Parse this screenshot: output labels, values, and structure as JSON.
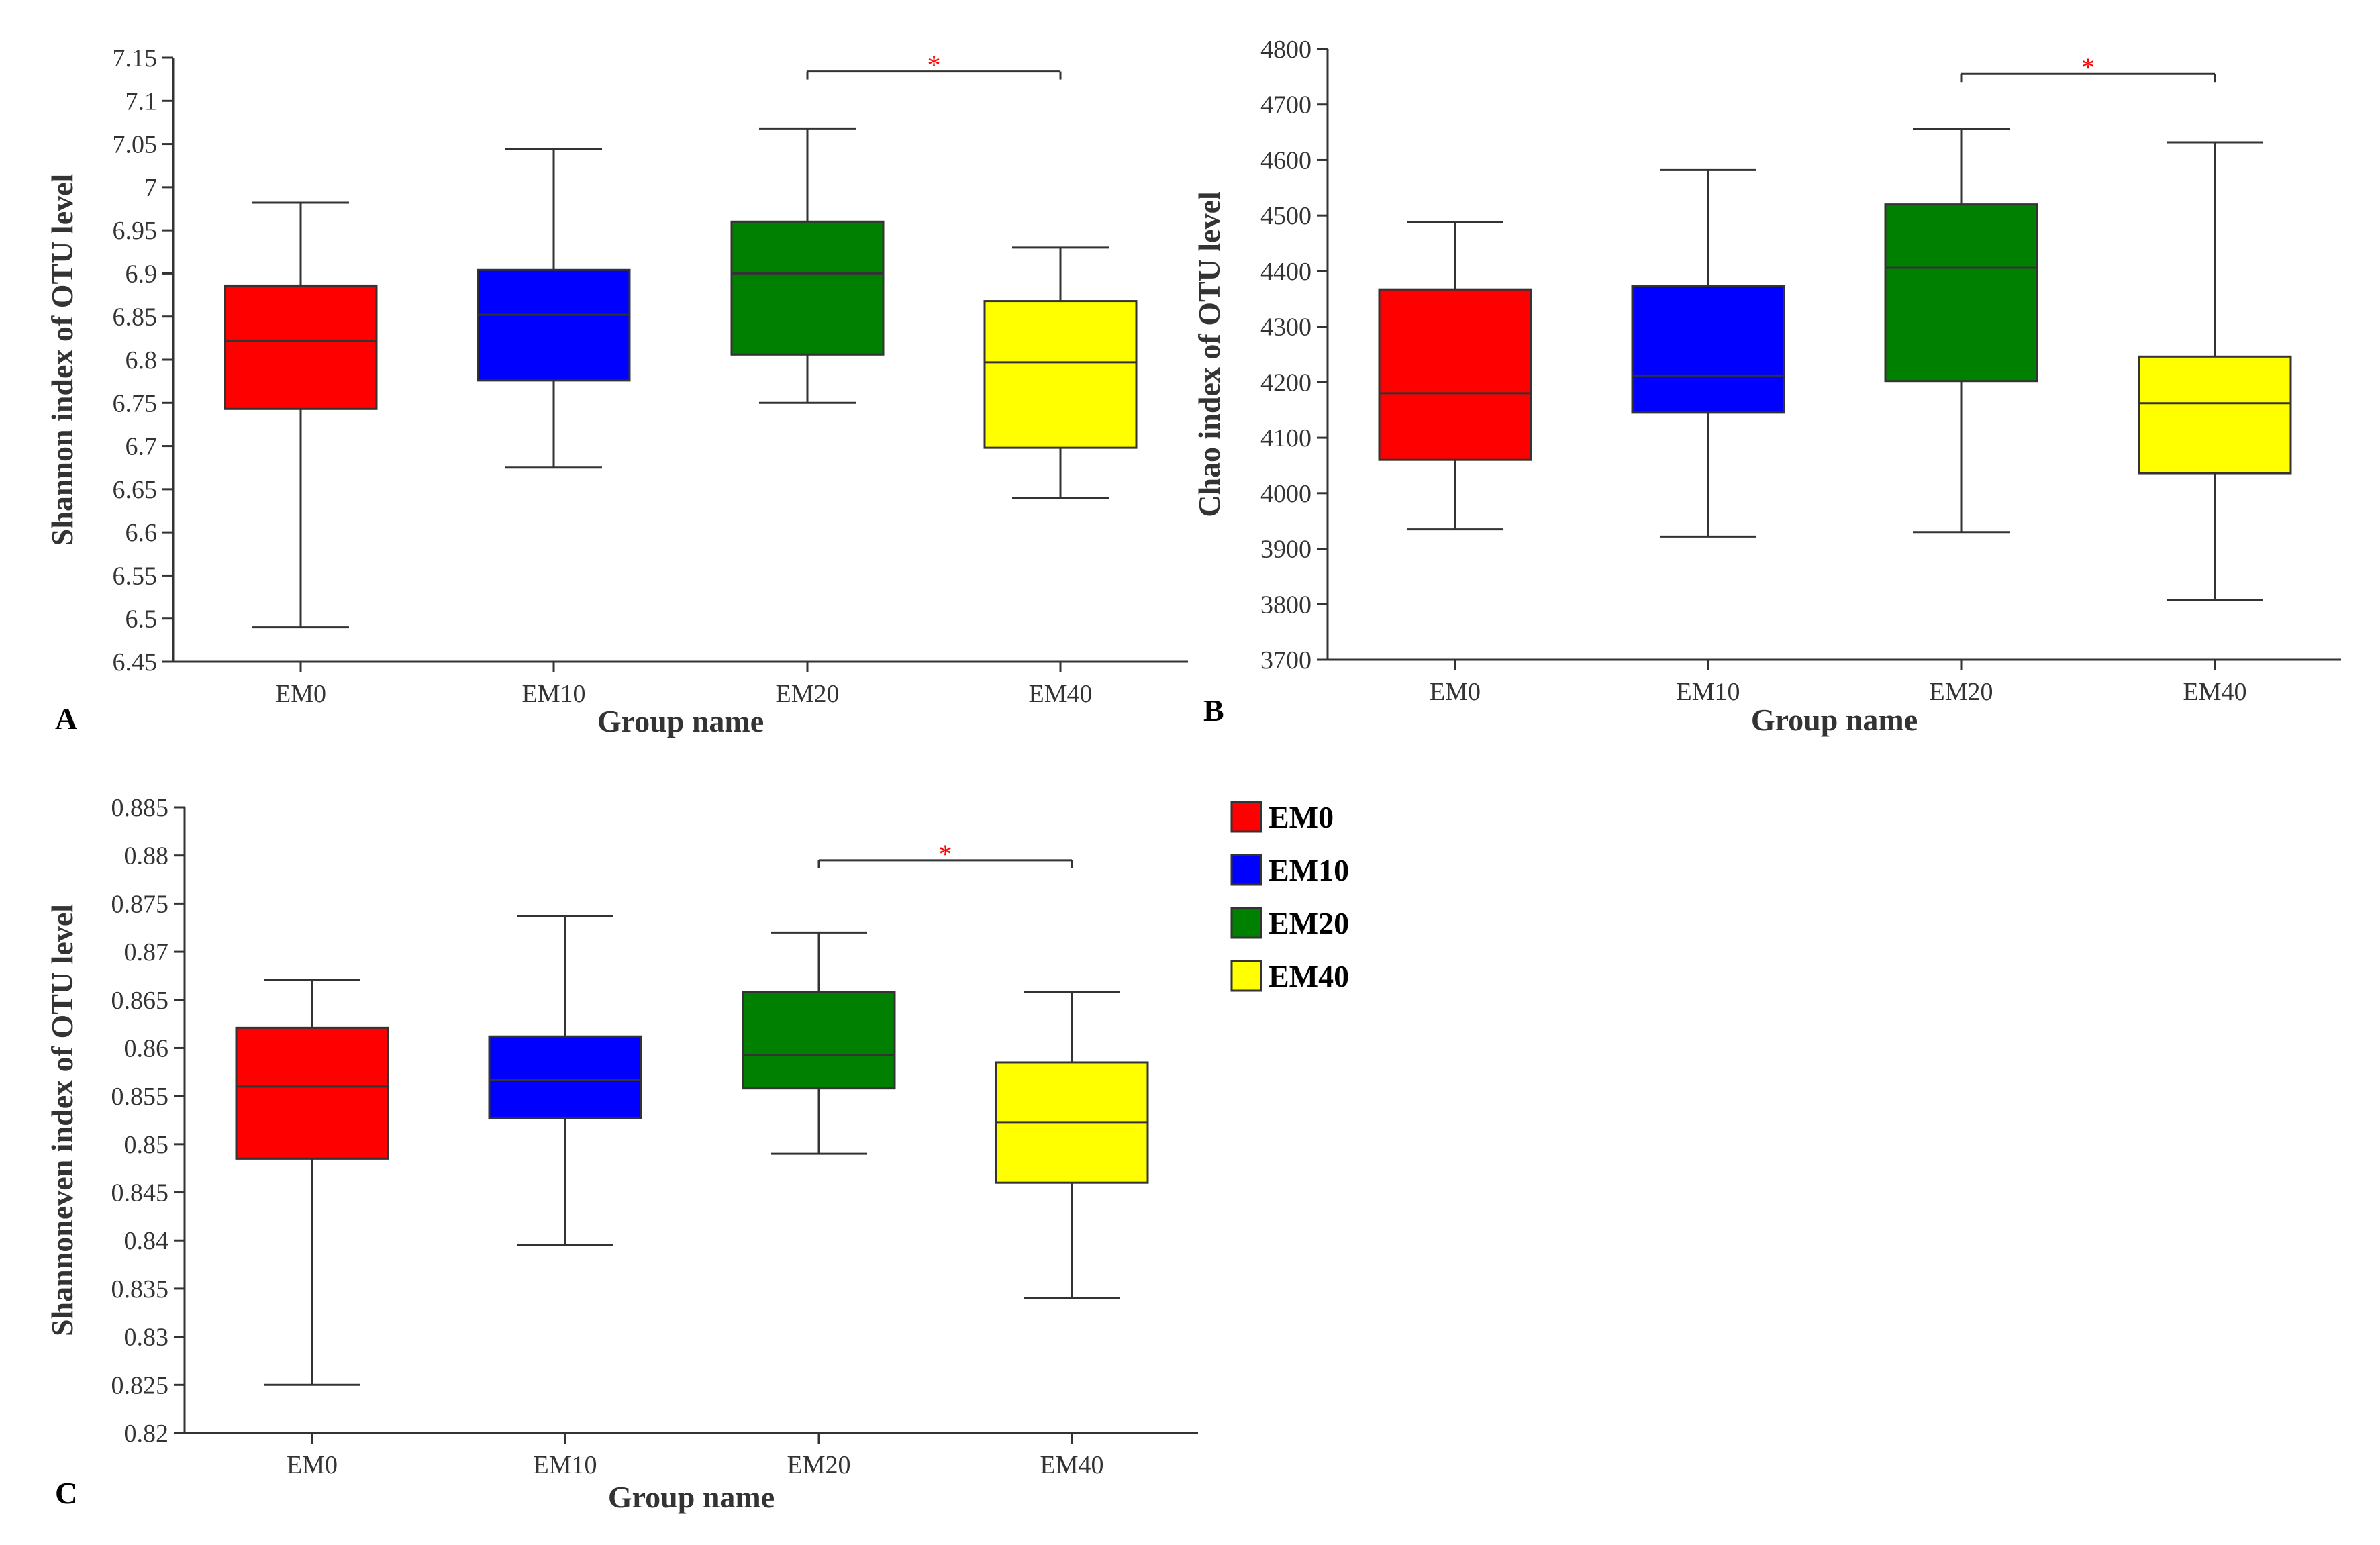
{
  "legend": {
    "items": [
      {
        "label": "EM0",
        "color": "#ff0000"
      },
      {
        "label": "EM10",
        "color": "#0000ff"
      },
      {
        "label": "EM20",
        "color": "#008000"
      },
      {
        "label": "EM40",
        "color": "#ffff00"
      }
    ]
  },
  "chart_data": [
    {
      "panel": "A",
      "type": "box",
      "xlabel": "Group name",
      "ylabel": "Shannon index of OTU level",
      "ylim": [
        6.45,
        7.15
      ],
      "yticks": [
        "6.45",
        "6.5",
        "6.55",
        "6.6",
        "6.65",
        "6.7",
        "6.75",
        "6.8",
        "6.85",
        "6.9",
        "6.95",
        "7",
        "7.05",
        "7.1",
        "7.15"
      ],
      "categories": [
        "EM0",
        "EM10",
        "EM20",
        "EM40"
      ],
      "boxes": [
        {
          "group": "EM0",
          "min": 6.49,
          "q1": 6.743,
          "median": 6.822,
          "q3": 6.886,
          "max": 6.982,
          "color": "#ff0000"
        },
        {
          "group": "EM10",
          "min": 6.675,
          "q1": 6.776,
          "median": 6.852,
          "q3": 6.904,
          "max": 7.044,
          "color": "#0000ff"
        },
        {
          "group": "EM20",
          "min": 6.75,
          "q1": 6.806,
          "median": 6.9,
          "q3": 6.96,
          "max": 7.068,
          "color": "#008000"
        },
        {
          "group": "EM40",
          "min": 6.64,
          "q1": 6.698,
          "median": 6.797,
          "q3": 6.868,
          "max": 6.93,
          "color": "#ffff00"
        }
      ],
      "significance": {
        "from": "EM20",
        "to": "EM40",
        "label": "*",
        "y": 7.134
      }
    },
    {
      "panel": "B",
      "type": "box",
      "xlabel": "Group name",
      "ylabel": "Chao index of OTU level",
      "ylim": [
        3700,
        4800
      ],
      "yticks": [
        "3700",
        "3800",
        "3900",
        "4000",
        "4100",
        "4200",
        "4300",
        "4400",
        "4500",
        "4600",
        "4700",
        "4800"
      ],
      "categories": [
        "EM0",
        "EM10",
        "EM20",
        "EM40"
      ],
      "boxes": [
        {
          "group": "EM0",
          "min": 3935,
          "q1": 4060,
          "median": 4180,
          "q3": 4367,
          "max": 4488,
          "color": "#ff0000"
        },
        {
          "group": "EM10",
          "min": 3922,
          "q1": 4145,
          "median": 4212,
          "q3": 4373,
          "max": 4582,
          "color": "#0000ff"
        },
        {
          "group": "EM20",
          "min": 3930,
          "q1": 4202,
          "median": 4406,
          "q3": 4520,
          "max": 4656,
          "color": "#008000"
        },
        {
          "group": "EM40",
          "min": 3808,
          "q1": 4036,
          "median": 4162,
          "q3": 4246,
          "max": 4632,
          "color": "#ffff00"
        }
      ],
      "significance": {
        "from": "EM20",
        "to": "EM40",
        "label": "*",
        "y": 4755
      }
    },
    {
      "panel": "C",
      "type": "box",
      "xlabel": "Group name",
      "ylabel": "Shannoneven index of OTU level",
      "ylim": [
        0.82,
        0.885
      ],
      "yticks": [
        "0.82",
        "0.825",
        "0.83",
        "0.835",
        "0.84",
        "0.845",
        "0.85",
        "0.855",
        "0.86",
        "0.865",
        "0.87",
        "0.875",
        "0.88",
        "0.885"
      ],
      "categories": [
        "EM0",
        "EM10",
        "EM20",
        "EM40"
      ],
      "boxes": [
        {
          "group": "EM0",
          "min": 0.825,
          "q1": 0.8485,
          "median": 0.856,
          "q3": 0.8621,
          "max": 0.8671,
          "color": "#ff0000"
        },
        {
          "group": "EM10",
          "min": 0.8395,
          "q1": 0.8527,
          "median": 0.8567,
          "q3": 0.8612,
          "max": 0.8737,
          "color": "#0000ff"
        },
        {
          "group": "EM20",
          "min": 0.849,
          "q1": 0.8558,
          "median": 0.8593,
          "q3": 0.8658,
          "max": 0.872,
          "color": "#008000"
        },
        {
          "group": "EM40",
          "min": 0.834,
          "q1": 0.846,
          "median": 0.8523,
          "q3": 0.8585,
          "max": 0.8658,
          "color": "#ffff00"
        }
      ],
      "significance": {
        "from": "EM20",
        "to": "EM40",
        "label": "*",
        "y": 0.8795
      }
    }
  ]
}
